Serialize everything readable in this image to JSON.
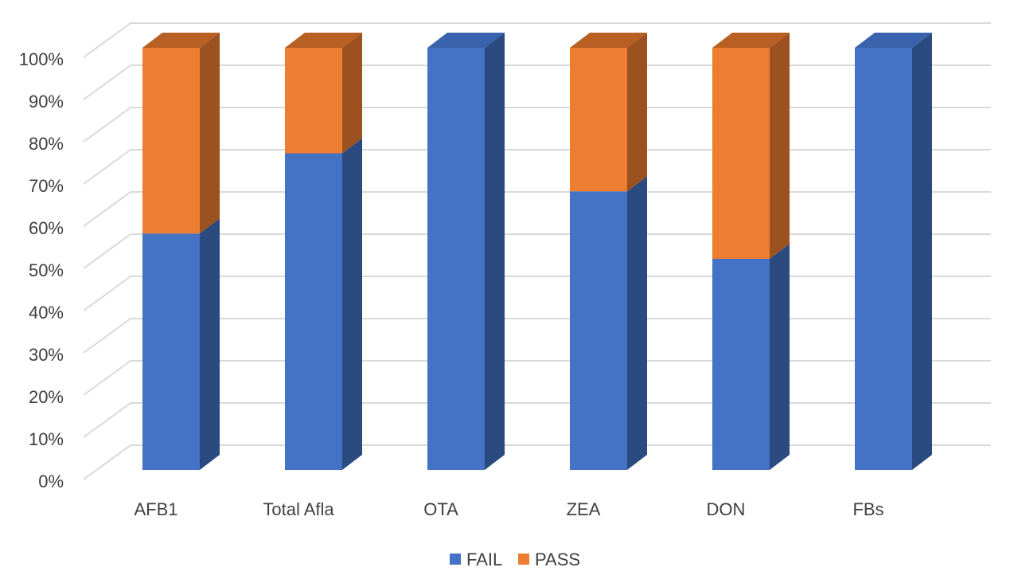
{
  "chart_data": {
    "type": "bar",
    "stacked": true,
    "percent": true,
    "style": "3d-column",
    "title": "",
    "xlabel": "",
    "ylabel": "",
    "ylim": [
      0,
      100
    ],
    "y_ticks": [
      "0%",
      "10%",
      "20%",
      "30%",
      "40%",
      "50%",
      "60%",
      "70%",
      "80%",
      "90%",
      "100%"
    ],
    "categories": [
      "AFB1",
      "Total Afla",
      "OTA",
      "ZEA",
      "DON",
      "FBs"
    ],
    "series": [
      {
        "name": "FAIL",
        "values": [
          56,
          75,
          100,
          66,
          50,
          100
        ],
        "color": "#4472C4",
        "side_color": "#2A4A80",
        "top_color": "#3A63AE"
      },
      {
        "name": "PASS",
        "values": [
          44,
          25,
          0,
          34,
          50,
          0
        ],
        "color": "#ED7D31",
        "side_color": "#9C5220",
        "top_color": "#B85F23"
      }
    ],
    "legend": {
      "position": "bottom",
      "entries": [
        "FAIL",
        "PASS"
      ]
    },
    "grid": true,
    "colors": {
      "grid": "#D9D9D9",
      "text": "#404040",
      "background": "#FFFFFF"
    }
  }
}
